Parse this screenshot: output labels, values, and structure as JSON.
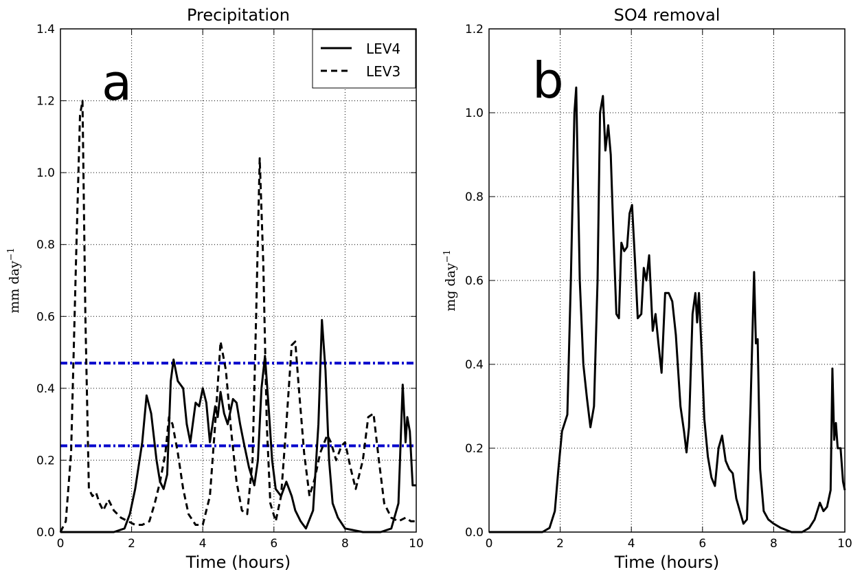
{
  "chart_data": [
    {
      "type": "line",
      "title": "Precipitation",
      "xlabel": "Time (hours)",
      "ylabel_main": "mm day",
      "ylabel_sup": "−1",
      "panel_label": "a",
      "xlim": [
        0,
        10
      ],
      "ylim": [
        0,
        1.4
      ],
      "xticks": [
        "0",
        "2",
        "4",
        "6",
        "8",
        "10"
      ],
      "yticks": [
        "0.0",
        "0.2",
        "0.4",
        "0.6",
        "0.8",
        "1.0",
        "1.2",
        "1.4"
      ],
      "grid": true,
      "legend": "top-right",
      "hlines": [
        0.47,
        0.24
      ],
      "hline_color": "#0000cc",
      "series": [
        {
          "name": "LEV4",
          "style": "solid",
          "x": [
            0,
            1.5,
            1.8,
            1.95,
            2.1,
            2.3,
            2.42,
            2.55,
            2.7,
            2.8,
            2.9,
            3.0,
            3.1,
            3.18,
            3.3,
            3.45,
            3.55,
            3.65,
            3.8,
            3.9,
            4.0,
            4.1,
            4.2,
            4.35,
            4.42,
            4.5,
            4.6,
            4.7,
            4.85,
            4.95,
            5.05,
            5.15,
            5.3,
            5.45,
            5.55,
            5.65,
            5.75,
            5.85,
            5.95,
            6.05,
            6.2,
            6.35,
            6.5,
            6.6,
            6.75,
            6.9,
            7.1,
            7.25,
            7.35,
            7.45,
            7.55,
            7.65,
            7.8,
            8.0,
            8.5,
            9.0,
            9.3,
            9.5,
            9.62,
            9.7,
            9.75,
            9.82,
            9.9,
            10.0
          ],
          "values": [
            0,
            0,
            0.01,
            0.05,
            0.12,
            0.25,
            0.38,
            0.33,
            0.2,
            0.14,
            0.12,
            0.16,
            0.42,
            0.48,
            0.42,
            0.4,
            0.3,
            0.25,
            0.36,
            0.35,
            0.4,
            0.36,
            0.25,
            0.35,
            0.32,
            0.39,
            0.33,
            0.3,
            0.37,
            0.36,
            0.3,
            0.25,
            0.18,
            0.13,
            0.2,
            0.4,
            0.49,
            0.35,
            0.2,
            0.12,
            0.1,
            0.14,
            0.1,
            0.06,
            0.03,
            0.01,
            0.06,
            0.3,
            0.59,
            0.45,
            0.2,
            0.08,
            0.04,
            0.01,
            0.0,
            0.0,
            0.01,
            0.08,
            0.41,
            0.25,
            0.32,
            0.28,
            0.13,
            0.13
          ]
        },
        {
          "name": "LEV3",
          "style": "dashed",
          "x": [
            0,
            0.15,
            0.3,
            0.45,
            0.55,
            0.62,
            0.7,
            0.8,
            0.9,
            1.0,
            1.1,
            1.2,
            1.35,
            1.5,
            1.7,
            1.9,
            2.1,
            2.3,
            2.5,
            2.65,
            2.8,
            2.95,
            3.05,
            3.15,
            3.3,
            3.45,
            3.6,
            3.8,
            4.0,
            4.2,
            4.35,
            4.5,
            4.65,
            4.8,
            4.95,
            5.1,
            5.25,
            5.4,
            5.5,
            5.6,
            5.7,
            5.8,
            5.9,
            6.05,
            6.2,
            6.35,
            6.5,
            6.6,
            6.7,
            6.85,
            7.0,
            7.15,
            7.3,
            7.5,
            7.6,
            7.75,
            7.9,
            8.0,
            8.15,
            8.3,
            8.5,
            8.65,
            8.8,
            8.95,
            9.1,
            9.3,
            9.5,
            9.7,
            9.85,
            10.0
          ],
          "values": [
            0,
            0.03,
            0.22,
            0.8,
            1.16,
            1.2,
            0.6,
            0.12,
            0.1,
            0.11,
            0.08,
            0.06,
            0.09,
            0.06,
            0.04,
            0.03,
            0.02,
            0.02,
            0.03,
            0.08,
            0.14,
            0.22,
            0.32,
            0.3,
            0.22,
            0.12,
            0.05,
            0.02,
            0.02,
            0.1,
            0.3,
            0.53,
            0.45,
            0.28,
            0.14,
            0.06,
            0.05,
            0.2,
            0.6,
            1.04,
            0.75,
            0.3,
            0.08,
            0.03,
            0.1,
            0.3,
            0.52,
            0.53,
            0.4,
            0.22,
            0.1,
            0.15,
            0.22,
            0.27,
            0.25,
            0.2,
            0.24,
            0.25,
            0.18,
            0.12,
            0.2,
            0.32,
            0.33,
            0.2,
            0.08,
            0.04,
            0.03,
            0.04,
            0.03,
            0.03
          ]
        }
      ]
    },
    {
      "type": "line",
      "title": "SO4 removal",
      "xlabel": "Time (hours)",
      "ylabel_main": "mg day",
      "ylabel_sup": "−1",
      "panel_label": "b",
      "xlim": [
        0,
        10
      ],
      "ylim": [
        0,
        1.2
      ],
      "xticks": [
        "0",
        "2",
        "4",
        "6",
        "8",
        "10"
      ],
      "yticks": [
        "0.0",
        "0.2",
        "0.4",
        "0.6",
        "0.8",
        "1.0",
        "1.2"
      ],
      "grid": true,
      "series": [
        {
          "style": "solid",
          "x": [
            0,
            1.5,
            1.7,
            1.85,
            1.95,
            2.05,
            2.2,
            2.3,
            2.4,
            2.45,
            2.55,
            2.65,
            2.75,
            2.85,
            2.95,
            3.05,
            3.12,
            3.2,
            3.27,
            3.35,
            3.42,
            3.5,
            3.58,
            3.65,
            3.72,
            3.8,
            3.88,
            3.95,
            4.02,
            4.1,
            4.18,
            4.28,
            4.35,
            4.42,
            4.5,
            4.6,
            4.68,
            4.76,
            4.85,
            4.95,
            5.05,
            5.15,
            5.25,
            5.38,
            5.48,
            5.55,
            5.62,
            5.72,
            5.8,
            5.85,
            5.9,
            5.98,
            6.05,
            6.15,
            6.25,
            6.35,
            6.45,
            6.55,
            6.65,
            6.75,
            6.85,
            6.95,
            7.05,
            7.15,
            7.25,
            7.35,
            7.45,
            7.5,
            7.55,
            7.62,
            7.72,
            7.85,
            8.0,
            8.2,
            8.5,
            8.8,
            9.0,
            9.15,
            9.3,
            9.4,
            9.5,
            9.6,
            9.65,
            9.7,
            9.75,
            9.8,
            9.88,
            9.95,
            10.0
          ],
          "values": [
            0,
            0,
            0.01,
            0.05,
            0.15,
            0.24,
            0.28,
            0.6,
            1.0,
            1.06,
            0.6,
            0.4,
            0.32,
            0.25,
            0.3,
            0.6,
            1.0,
            1.04,
            0.91,
            0.97,
            0.9,
            0.7,
            0.52,
            0.51,
            0.69,
            0.67,
            0.68,
            0.76,
            0.78,
            0.65,
            0.51,
            0.52,
            0.63,
            0.6,
            0.66,
            0.48,
            0.52,
            0.45,
            0.38,
            0.57,
            0.57,
            0.55,
            0.47,
            0.3,
            0.24,
            0.19,
            0.25,
            0.52,
            0.57,
            0.5,
            0.57,
            0.42,
            0.27,
            0.18,
            0.13,
            0.11,
            0.2,
            0.23,
            0.17,
            0.15,
            0.14,
            0.08,
            0.05,
            0.02,
            0.03,
            0.3,
            0.62,
            0.45,
            0.46,
            0.15,
            0.05,
            0.03,
            0.02,
            0.01,
            0.0,
            0.0,
            0.01,
            0.03,
            0.07,
            0.05,
            0.06,
            0.1,
            0.39,
            0.22,
            0.26,
            0.2,
            0.2,
            0.12,
            0.1
          ]
        }
      ]
    }
  ]
}
